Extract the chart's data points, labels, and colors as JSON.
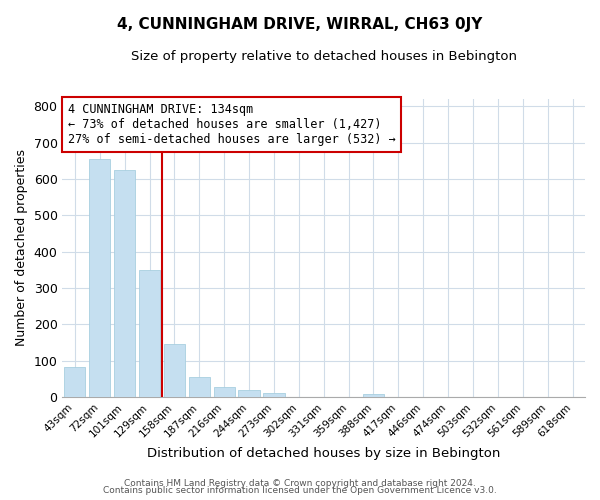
{
  "title": "4, CUNNINGHAM DRIVE, WIRRAL, CH63 0JY",
  "subtitle": "Size of property relative to detached houses in Bebington",
  "xlabel": "Distribution of detached houses by size in Bebington",
  "ylabel": "Number of detached properties",
  "bar_labels": [
    "43sqm",
    "72sqm",
    "101sqm",
    "129sqm",
    "158sqm",
    "187sqm",
    "216sqm",
    "244sqm",
    "273sqm",
    "302sqm",
    "331sqm",
    "359sqm",
    "388sqm",
    "417sqm",
    "446sqm",
    "474sqm",
    "503sqm",
    "532sqm",
    "561sqm",
    "589sqm",
    "618sqm"
  ],
  "bar_values": [
    82,
    655,
    625,
    350,
    145,
    55,
    27,
    18,
    10,
    0,
    0,
    0,
    8,
    0,
    0,
    0,
    0,
    0,
    0,
    0,
    0
  ],
  "bar_color": "#c5dff0",
  "bar_edge_color": "#a8cfe0",
  "reference_line_x": 3.5,
  "reference_line_color": "#cc0000",
  "ylim": [
    0,
    820
  ],
  "yticks": [
    0,
    100,
    200,
    300,
    400,
    500,
    600,
    700,
    800
  ],
  "annotation_line1": "4 CUNNINGHAM DRIVE: 134sqm",
  "annotation_line2": "← 73% of detached houses are smaller (1,427)",
  "annotation_line3": "27% of semi-detached houses are larger (532) →",
  "annotation_box_edgecolor": "#cc0000",
  "footer_line1": "Contains HM Land Registry data © Crown copyright and database right 2024.",
  "footer_line2": "Contains public sector information licensed under the Open Government Licence v3.0.",
  "figsize": [
    6.0,
    5.0
  ],
  "dpi": 100
}
